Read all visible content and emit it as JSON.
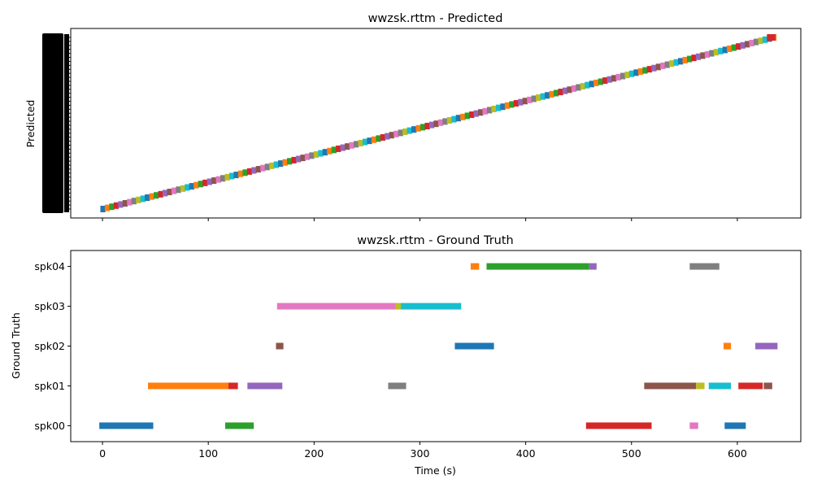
{
  "chart_data": [
    {
      "type": "timeline",
      "title": "wwzsk.rttm - Predicted",
      "ylabel": "Predicted",
      "xlim": [
        -30,
        660
      ],
      "x_ticks": [
        0,
        100,
        200,
        300,
        400,
        500,
        600
      ],
      "x_tick_labels_shown": false,
      "y_tick_labels": "dense overlapping labels (unreadable)",
      "segments": {
        "description": "Many short predicted segments forming a near-diagonal staircase from ~0s to ~635s",
        "start": -2,
        "end": 635,
        "segment_length": 4.2,
        "color_cycle": [
          "#1f77b4",
          "#ff7f0e",
          "#2ca02c",
          "#d62728",
          "#9467bd",
          "#8c564b",
          "#e377c2",
          "#7f7f7f",
          "#bcbd22",
          "#17becf"
        ],
        "final_segment": {
          "start": 628,
          "end": 636,
          "color": "#d62728"
        }
      }
    },
    {
      "type": "timeline",
      "title": "wwzsk.rttm - Ground Truth",
      "xlabel": "Time (s)",
      "ylabel": "Ground Truth",
      "xlim": [
        -30,
        660
      ],
      "x_ticks": [
        0,
        100,
        200,
        300,
        400,
        500,
        600
      ],
      "y_categories": [
        "spk00",
        "spk01",
        "spk02",
        "spk03",
        "spk04"
      ],
      "segments": [
        {
          "speaker": "spk00",
          "start": -3,
          "end": 48,
          "color": "#1f77b4"
        },
        {
          "speaker": "spk00",
          "start": 116,
          "end": 143,
          "color": "#2ca02c"
        },
        {
          "speaker": "spk00",
          "start": 457,
          "end": 519,
          "color": "#d62728"
        },
        {
          "speaker": "spk00",
          "start": 555,
          "end": 563,
          "color": "#e377c2"
        },
        {
          "speaker": "spk00",
          "start": 588,
          "end": 608,
          "color": "#1f77b4"
        },
        {
          "speaker": "spk01",
          "start": 43,
          "end": 119,
          "color": "#ff7f0e"
        },
        {
          "speaker": "spk01",
          "start": 119,
          "end": 128,
          "color": "#d62728"
        },
        {
          "speaker": "spk01",
          "start": 137,
          "end": 170,
          "color": "#9467bd"
        },
        {
          "speaker": "spk01",
          "start": 270,
          "end": 287,
          "color": "#7f7f7f"
        },
        {
          "speaker": "spk01",
          "start": 512,
          "end": 561,
          "color": "#8c564b"
        },
        {
          "speaker": "spk01",
          "start": 561,
          "end": 569,
          "color": "#bcbd22"
        },
        {
          "speaker": "spk01",
          "start": 573,
          "end": 594,
          "color": "#17becf"
        },
        {
          "speaker": "spk01",
          "start": 601,
          "end": 624,
          "color": "#d62728"
        },
        {
          "speaker": "spk01",
          "start": 625,
          "end": 633,
          "color": "#8c564b"
        },
        {
          "speaker": "spk02",
          "start": 164,
          "end": 171,
          "color": "#8c564b"
        },
        {
          "speaker": "spk02",
          "start": 333,
          "end": 370,
          "color": "#1f77b4"
        },
        {
          "speaker": "spk02",
          "start": 587,
          "end": 594,
          "color": "#ff7f0e"
        },
        {
          "speaker": "spk02",
          "start": 617,
          "end": 638,
          "color": "#9467bd"
        },
        {
          "speaker": "spk03",
          "start": 165,
          "end": 277,
          "color": "#e377c2"
        },
        {
          "speaker": "spk03",
          "start": 277,
          "end": 282,
          "color": "#bcbd22"
        },
        {
          "speaker": "spk03",
          "start": 282,
          "end": 339,
          "color": "#17becf"
        },
        {
          "speaker": "spk04",
          "start": 348,
          "end": 356,
          "color": "#ff7f0e"
        },
        {
          "speaker": "spk04",
          "start": 363,
          "end": 460,
          "color": "#2ca02c"
        },
        {
          "speaker": "spk04",
          "start": 460,
          "end": 467,
          "color": "#9467bd"
        },
        {
          "speaker": "spk04",
          "start": 555,
          "end": 583,
          "color": "#7f7f7f"
        }
      ]
    }
  ]
}
